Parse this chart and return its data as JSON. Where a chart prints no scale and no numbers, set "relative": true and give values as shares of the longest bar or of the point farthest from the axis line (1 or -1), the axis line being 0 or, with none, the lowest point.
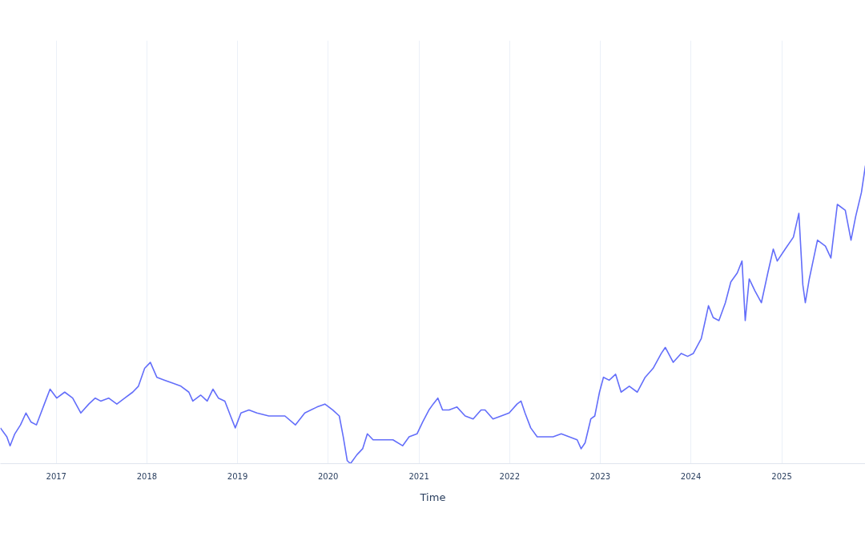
{
  "chart_data": {
    "type": "line",
    "xlabel": "Time",
    "relative": true,
    "grid": "x",
    "tick_labels": "x",
    "xlim": [
      "2016-05-21",
      "2025-12-04"
    ],
    "xticks": [
      "2017",
      "2018",
      "2019",
      "2020",
      "2021",
      "2022",
      "2023",
      "2024",
      "2025"
    ],
    "series": [
      {
        "color": "#636efa",
        "x": [
          "2016-05-21",
          "2016-06-16",
          "2016-06-29",
          "2016-07-18",
          "2016-08-10",
          "2016-09-01",
          "2016-09-21",
          "2016-10-13",
          "2016-11-14",
          "2016-12-07",
          "2017-01-03",
          "2017-02-04",
          "2017-03-08",
          "2017-04-10",
          "2017-05-12",
          "2017-06-07",
          "2017-06-29",
          "2017-07-31",
          "2017-09-02",
          "2017-10-04",
          "2017-11-05",
          "2017-11-28",
          "2017-12-23",
          "2018-01-15",
          "2018-02-10",
          "2018-03-14",
          "2018-04-15",
          "2018-05-18",
          "2018-06-19",
          "2018-07-05",
          "2018-08-06",
          "2018-09-01",
          "2018-09-24",
          "2018-10-16",
          "2018-11-11",
          "2018-12-04",
          "2018-12-23",
          "2019-01-15",
          "2019-02-16",
          "2019-03-20",
          "2019-05-07",
          "2019-07-11",
          "2019-08-22",
          "2019-09-29",
          "2019-11-17",
          "2019-12-19",
          "2020-01-20",
          "2020-02-15",
          "2020-03-02",
          "2020-03-18",
          "2020-03-31",
          "2020-04-26",
          "2020-05-19",
          "2020-06-07",
          "2020-06-30",
          "2020-08-01",
          "2020-09-18",
          "2020-10-27",
          "2020-11-22",
          "2020-12-24",
          "2021-01-16",
          "2021-02-10",
          "2021-02-27",
          "2021-03-18",
          "2021-04-06",
          "2021-05-02",
          "2021-06-03",
          "2021-07-06",
          "2021-08-07",
          "2021-09-08",
          "2021-09-24",
          "2021-10-26",
          "2021-11-28",
          "2021-12-30",
          "2022-01-31",
          "2022-02-16",
          "2022-03-04",
          "2022-03-27",
          "2022-04-22",
          "2022-05-24",
          "2022-06-25",
          "2022-07-28",
          "2022-08-29",
          "2022-09-30",
          "2022-10-16",
          "2022-11-01",
          "2022-11-24",
          "2022-12-10",
          "2022-12-29",
          "2023-01-14",
          "2023-02-06",
          "2023-03-04",
          "2023-03-26",
          "2023-04-28",
          "2023-05-30",
          "2023-07-01",
          "2023-08-02",
          "2023-09-04",
          "2023-09-20",
          "2023-10-22",
          "2023-11-23",
          "2023-12-19",
          "2024-01-11",
          "2024-02-12",
          "2024-02-28",
          "2024-03-12",
          "2024-03-31",
          "2024-04-23",
          "2024-05-19",
          "2024-06-10",
          "2024-07-06",
          "2024-07-25",
          "2024-08-07",
          "2024-08-23",
          "2024-09-15",
          "2024-10-11",
          "2024-11-06",
          "2024-11-28",
          "2024-12-14",
          "2025-01-15",
          "2025-02-17",
          "2025-03-11",
          "2025-03-27",
          "2025-04-06",
          "2025-04-22",
          "2025-05-25",
          "2025-06-26",
          "2025-07-18",
          "2025-08-13",
          "2025-09-14",
          "2025-10-07",
          "2025-10-26",
          "2025-11-18",
          "2025-12-04"
        ],
        "values": [
          0.12,
          0.09,
          0.06,
          0.1,
          0.13,
          0.17,
          0.14,
          0.13,
          0.2,
          0.25,
          0.22,
          0.24,
          0.22,
          0.17,
          0.2,
          0.22,
          0.21,
          0.22,
          0.2,
          0.22,
          0.24,
          0.26,
          0.32,
          0.34,
          0.29,
          0.28,
          0.27,
          0.26,
          0.24,
          0.21,
          0.23,
          0.21,
          0.25,
          0.22,
          0.21,
          0.16,
          0.12,
          0.17,
          0.18,
          0.17,
          0.16,
          0.16,
          0.13,
          0.17,
          0.19,
          0.2,
          0.18,
          0.16,
          0.09,
          0.01,
          0.0,
          0.03,
          0.05,
          0.1,
          0.08,
          0.08,
          0.08,
          0.06,
          0.09,
          0.1,
          0.14,
          0.18,
          0.2,
          0.22,
          0.18,
          0.18,
          0.19,
          0.16,
          0.15,
          0.18,
          0.18,
          0.15,
          0.16,
          0.17,
          0.2,
          0.21,
          0.17,
          0.12,
          0.09,
          0.09,
          0.09,
          0.1,
          0.09,
          0.08,
          0.05,
          0.07,
          0.15,
          0.16,
          0.24,
          0.29,
          0.28,
          0.3,
          0.24,
          0.26,
          0.24,
          0.29,
          0.32,
          0.37,
          0.39,
          0.34,
          0.37,
          0.36,
          0.37,
          0.42,
          0.48,
          0.53,
          0.49,
          0.48,
          0.54,
          0.61,
          0.64,
          0.68,
          0.48,
          0.62,
          0.58,
          0.54,
          0.64,
          0.72,
          0.68,
          0.72,
          0.76,
          0.84,
          0.6,
          0.54,
          0.62,
          0.75,
          0.73,
          0.69,
          0.87,
          0.85,
          0.75,
          0.83,
          0.91,
          1.0
        ]
      }
    ]
  }
}
